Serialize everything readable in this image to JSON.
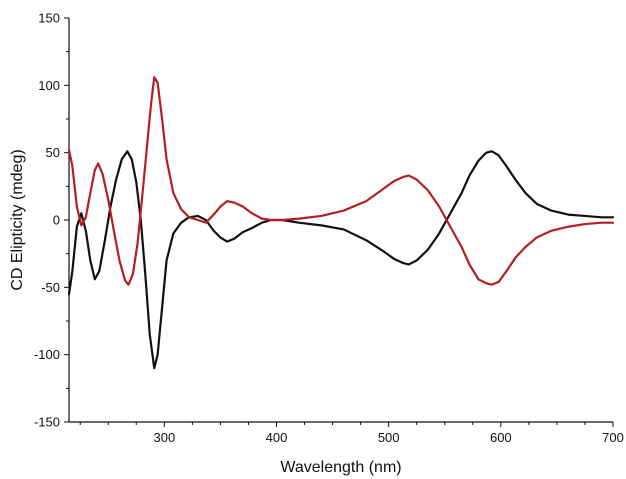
{
  "chart_data": {
    "type": "line",
    "title": "",
    "xlabel": "Wavelength (nm)",
    "ylabel": "CD Elipticity (mdeg)",
    "xlim": [
      215,
      700
    ],
    "ylim": [
      -150,
      150
    ],
    "x_ticks": [
      300,
      400,
      500,
      600,
      700
    ],
    "y_ticks": [
      -150,
      -100,
      -50,
      0,
      50,
      100,
      150
    ],
    "x_minor_step": 25,
    "y_minor_step": 25,
    "grid": false,
    "legend": "none",
    "series": [
      {
        "color": "#111111",
        "points": [
          [
            215,
            -55
          ],
          [
            218,
            -38
          ],
          [
            222,
            -5
          ],
          [
            226,
            5
          ],
          [
            230,
            -8
          ],
          [
            234,
            -30
          ],
          [
            238,
            -44
          ],
          [
            242,
            -38
          ],
          [
            247,
            -15
          ],
          [
            252,
            10
          ],
          [
            257,
            30
          ],
          [
            262,
            45
          ],
          [
            267,
            51
          ],
          [
            271,
            45
          ],
          [
            275,
            28
          ],
          [
            279,
            0
          ],
          [
            283,
            -40
          ],
          [
            287,
            -85
          ],
          [
            291,
            -110
          ],
          [
            294,
            -100
          ],
          [
            298,
            -65
          ],
          [
            302,
            -30
          ],
          [
            308,
            -10
          ],
          [
            315,
            -2
          ],
          [
            322,
            2
          ],
          [
            330,
            3
          ],
          [
            337,
            0
          ],
          [
            344,
            -8
          ],
          [
            350,
            -13
          ],
          [
            356,
            -16
          ],
          [
            362,
            -14
          ],
          [
            370,
            -9
          ],
          [
            378,
            -6
          ],
          [
            387,
            -2
          ],
          [
            395,
            0
          ],
          [
            405,
            0
          ],
          [
            420,
            -2
          ],
          [
            440,
            -4
          ],
          [
            460,
            -7
          ],
          [
            480,
            -15
          ],
          [
            495,
            -23
          ],
          [
            505,
            -29
          ],
          [
            513,
            -32
          ],
          [
            518,
            -33
          ],
          [
            525,
            -30
          ],
          [
            535,
            -22
          ],
          [
            545,
            -10
          ],
          [
            555,
            5
          ],
          [
            565,
            20
          ],
          [
            572,
            33
          ],
          [
            580,
            44
          ],
          [
            587,
            50
          ],
          [
            592,
            51
          ],
          [
            598,
            48
          ],
          [
            605,
            40
          ],
          [
            613,
            30
          ],
          [
            622,
            20
          ],
          [
            632,
            12
          ],
          [
            645,
            7
          ],
          [
            660,
            4
          ],
          [
            675,
            3
          ],
          [
            690,
            2
          ],
          [
            700,
            2
          ]
        ]
      },
      {
        "color": "#b41f24",
        "points": [
          [
            215,
            52
          ],
          [
            218,
            40
          ],
          [
            222,
            10
          ],
          [
            226,
            -4
          ],
          [
            230,
            2
          ],
          [
            234,
            20
          ],
          [
            238,
            37
          ],
          [
            241,
            42
          ],
          [
            245,
            34
          ],
          [
            250,
            15
          ],
          [
            255,
            -8
          ],
          [
            260,
            -30
          ],
          [
            265,
            -45
          ],
          [
            268,
            -48
          ],
          [
            272,
            -40
          ],
          [
            276,
            -18
          ],
          [
            280,
            15
          ],
          [
            284,
            50
          ],
          [
            288,
            85
          ],
          [
            291,
            106
          ],
          [
            294,
            102
          ],
          [
            298,
            75
          ],
          [
            302,
            45
          ],
          [
            308,
            20
          ],
          [
            315,
            8
          ],
          [
            322,
            2
          ],
          [
            330,
            0
          ],
          [
            337,
            -2
          ],
          [
            344,
            4
          ],
          [
            350,
            10
          ],
          [
            356,
            14
          ],
          [
            362,
            13
          ],
          [
            370,
            10
          ],
          [
            378,
            5
          ],
          [
            387,
            1
          ],
          [
            395,
            0
          ],
          [
            405,
            0
          ],
          [
            420,
            1
          ],
          [
            440,
            3
          ],
          [
            460,
            7
          ],
          [
            480,
            14
          ],
          [
            495,
            23
          ],
          [
            505,
            29
          ],
          [
            513,
            32
          ],
          [
            518,
            33
          ],
          [
            525,
            30
          ],
          [
            535,
            22
          ],
          [
            545,
            10
          ],
          [
            555,
            -5
          ],
          [
            565,
            -20
          ],
          [
            572,
            -33
          ],
          [
            580,
            -44
          ],
          [
            587,
            -47
          ],
          [
            592,
            -48
          ],
          [
            598,
            -46
          ],
          [
            605,
            -38
          ],
          [
            613,
            -28
          ],
          [
            622,
            -20
          ],
          [
            632,
            -13
          ],
          [
            645,
            -8
          ],
          [
            660,
            -5
          ],
          [
            675,
            -3
          ],
          [
            690,
            -2
          ],
          [
            700,
            -2
          ]
        ]
      }
    ]
  }
}
